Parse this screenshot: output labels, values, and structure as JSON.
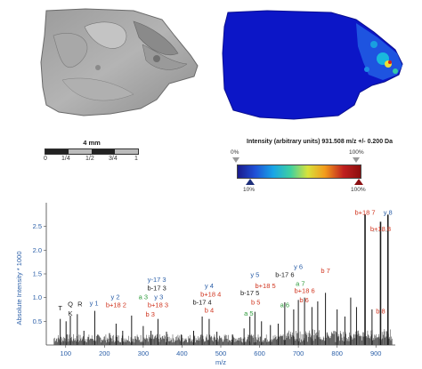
{
  "scale_bar": {
    "label": "4 mm",
    "ticks": [
      "0",
      "1/4",
      "1/2",
      "3/4",
      "1"
    ]
  },
  "intensity": {
    "title": "Intensity (arbitrary units) 931.508 m/z +/- 0.200 Da",
    "top_left": "0%",
    "top_right": "100%",
    "bottom_left": "10%",
    "bottom_right": "100%",
    "colors": [
      "#1a1a8c",
      "#1f4fd6",
      "#18a5e6",
      "#3fd0a0",
      "#d9e23a",
      "#f29b1c",
      "#c0201f",
      "#8c0d0d"
    ]
  },
  "spectrum": {
    "ylabel": "Absolute Intensity * 1000",
    "xlabel": "m/z",
    "xticks": [
      "100",
      "200",
      "300",
      "400",
      "500",
      "600",
      "700",
      "800",
      "900"
    ],
    "yticks": [
      "0.5",
      "1.0",
      "1.5",
      "2.0",
      "2.5"
    ],
    "peak_labels": [
      {
        "text": "b+18 7",
        "mz": 872,
        "int": 2.75,
        "color": "#d0341e"
      },
      {
        "text": "b+18 8",
        "mz": 912,
        "int": 2.4,
        "color": "#d0341e"
      },
      {
        "text": "y 8",
        "mz": 931,
        "int": 2.75,
        "color": "#2b5fa8"
      },
      {
        "text": "y 6",
        "mz": 700,
        "int": 1.6,
        "color": "#2b5fa8"
      },
      {
        "text": "y 5",
        "mz": 588,
        "int": 1.43,
        "color": "#2b5fa8"
      },
      {
        "text": "b-17 6",
        "mz": 665,
        "int": 1.43,
        "color": "#1a1a1a"
      },
      {
        "text": "b 7",
        "mz": 770,
        "int": 1.52,
        "color": "#d0341e"
      },
      {
        "text": "b+18 5",
        "mz": 615,
        "int": 1.2,
        "color": "#d0341e"
      },
      {
        "text": "a 7",
        "mz": 705,
        "int": 1.25,
        "color": "#2e9b3b"
      },
      {
        "text": "b+18 6",
        "mz": 716,
        "int": 1.1,
        "color": "#d0341e"
      },
      {
        "text": "y-17 3",
        "mz": 335,
        "int": 1.33,
        "color": "#2b5fa8"
      },
      {
        "text": "y 4",
        "mz": 470,
        "int": 1.2,
        "color": "#2b5fa8"
      },
      {
        "text": "b-17 3",
        "mz": 335,
        "int": 1.15,
        "color": "#1a1a1a"
      },
      {
        "text": "b-17 5",
        "mz": 575,
        "int": 1.05,
        "color": "#1a1a1a"
      },
      {
        "text": "b+18 4",
        "mz": 474,
        "int": 1.02,
        "color": "#d0341e"
      },
      {
        "text": "y 2",
        "mz": 228,
        "int": 0.97,
        "color": "#2b5fa8"
      },
      {
        "text": "a 3",
        "mz": 300,
        "int": 0.97,
        "color": "#2e9b3b"
      },
      {
        "text": "y 3",
        "mz": 340,
        "int": 0.97,
        "color": "#2b5fa8"
      },
      {
        "text": "b-17 4",
        "mz": 452,
        "int": 0.85,
        "color": "#1a1a1a"
      },
      {
        "text": "b 5",
        "mz": 590,
        "int": 0.85,
        "color": "#d0341e"
      },
      {
        "text": "b+18 2",
        "mz": 230,
        "int": 0.8,
        "color": "#d0341e"
      },
      {
        "text": "b+18 3",
        "mz": 338,
        "int": 0.8,
        "color": "#d0341e"
      },
      {
        "text": "y 1",
        "mz": 173,
        "int": 0.83,
        "color": "#2b5fa8"
      },
      {
        "text": "a 6",
        "mz": 665,
        "int": 0.8,
        "color": "#2e9b3b"
      },
      {
        "text": "b 6",
        "mz": 715,
        "int": 0.9,
        "color": "#d0341e"
      },
      {
        "text": "b 4",
        "mz": 470,
        "int": 0.68,
        "color": "#d0341e"
      },
      {
        "text": "b 3",
        "mz": 318,
        "int": 0.6,
        "color": "#d0341e"
      },
      {
        "text": "a 5",
        "mz": 572,
        "int": 0.62,
        "color": "#2e9b3b"
      },
      {
        "text": "b 8",
        "mz": 912,
        "int": 0.67,
        "color": "#d0341e"
      },
      {
        "text": "Q",
        "mz": 112,
        "int": 0.82,
        "color": "#1a1a1a"
      },
      {
        "text": "R",
        "mz": 137,
        "int": 0.82,
        "color": "#1a1a1a"
      },
      {
        "text": "T",
        "mz": 86,
        "int": 0.73,
        "color": "#1a1a1a"
      },
      {
        "text": "K",
        "mz": 112,
        "int": 0.62,
        "color": "#1a1a1a"
      }
    ]
  },
  "chart_data": {
    "type": "line",
    "title": "",
    "xlabel": "m/z",
    "ylabel": "Absolute Intensity * 1000",
    "xlim": [
      50,
      950
    ],
    "ylim": [
      0,
      3.0
    ],
    "peaks": [
      {
        "x": 86,
        "y": 0.55
      },
      {
        "x": 101,
        "y": 0.5
      },
      {
        "x": 112,
        "y": 0.62
      },
      {
        "x": 130,
        "y": 0.65
      },
      {
        "x": 147,
        "y": 0.3
      },
      {
        "x": 175,
        "y": 0.72
      },
      {
        "x": 213,
        "y": 0.25
      },
      {
        "x": 230,
        "y": 0.45
      },
      {
        "x": 247,
        "y": 0.3
      },
      {
        "x": 270,
        "y": 0.62
      },
      {
        "x": 300,
        "y": 0.4
      },
      {
        "x": 320,
        "y": 0.3
      },
      {
        "x": 338,
        "y": 0.55
      },
      {
        "x": 360,
        "y": 0.28
      },
      {
        "x": 398,
        "y": 0.22
      },
      {
        "x": 430,
        "y": 0.3
      },
      {
        "x": 452,
        "y": 0.6
      },
      {
        "x": 470,
        "y": 0.55
      },
      {
        "x": 490,
        "y": 0.28
      },
      {
        "x": 530,
        "y": 0.22
      },
      {
        "x": 560,
        "y": 0.35
      },
      {
        "x": 575,
        "y": 0.6
      },
      {
        "x": 588,
        "y": 0.7
      },
      {
        "x": 605,
        "y": 0.5
      },
      {
        "x": 628,
        "y": 0.42
      },
      {
        "x": 648,
        "y": 0.45
      },
      {
        "x": 665,
        "y": 0.9
      },
      {
        "x": 688,
        "y": 0.75
      },
      {
        "x": 700,
        "y": 0.95
      },
      {
        "x": 716,
        "y": 1.0
      },
      {
        "x": 735,
        "y": 0.8
      },
      {
        "x": 750,
        "y": 0.92
      },
      {
        "x": 770,
        "y": 1.1
      },
      {
        "x": 800,
        "y": 0.75
      },
      {
        "x": 820,
        "y": 0.6
      },
      {
        "x": 835,
        "y": 1.0
      },
      {
        "x": 850,
        "y": 0.8
      },
      {
        "x": 872,
        "y": 2.75
      },
      {
        "x": 890,
        "y": 0.75
      },
      {
        "x": 912,
        "y": 2.6
      },
      {
        "x": 931,
        "y": 2.75
      }
    ]
  }
}
